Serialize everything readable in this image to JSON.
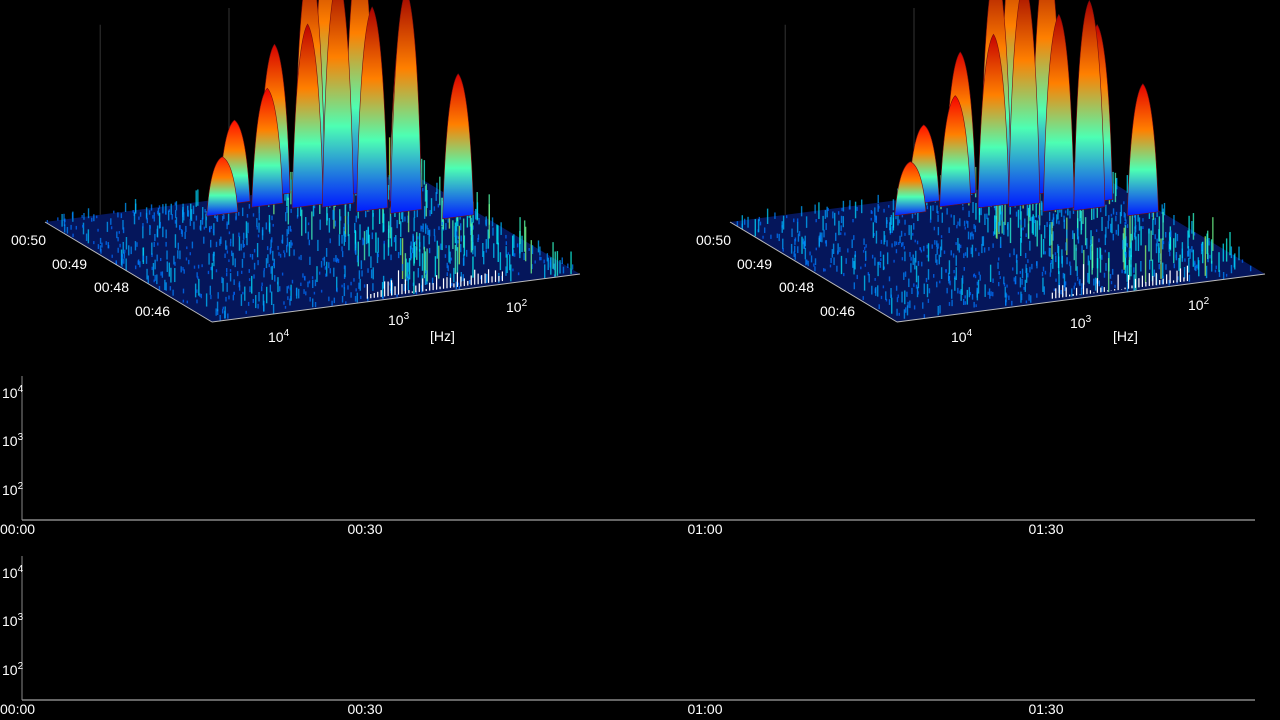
{
  "chart_data": [
    {
      "type": "surface",
      "time_ticks": [
        "00:50",
        "00:49",
        "00:48",
        "00:46"
      ],
      "freq_ticks": [
        {
          "base": "10",
          "exp": "4"
        },
        {
          "base": "10",
          "exp": "3"
        },
        {
          "base": "10",
          "exp": "2"
        }
      ],
      "freq_unit": "[Hz]",
      "colormap": "jet",
      "peaks": [
        {
          "f": 200,
          "t": 48.4,
          "h": 0.55
        },
        {
          "f": 260,
          "t": 49.2,
          "h": 0.72
        },
        {
          "f": 320,
          "t": 48.8,
          "h": 0.85
        },
        {
          "f": 380,
          "t": 49.6,
          "h": 0.95
        },
        {
          "f": 450,
          "t": 49.0,
          "h": 0.78
        },
        {
          "f": 520,
          "t": 49.8,
          "h": 1.0
        },
        {
          "f": 600,
          "t": 49.3,
          "h": 0.88
        },
        {
          "f": 700,
          "t": 49.7,
          "h": 0.9
        },
        {
          "f": 850,
          "t": 49.4,
          "h": 0.7
        },
        {
          "f": 1000,
          "t": 49.9,
          "h": 0.58
        },
        {
          "f": 1300,
          "t": 49.6,
          "h": 0.45
        },
        {
          "f": 1800,
          "t": 49.8,
          "h": 0.32
        },
        {
          "f": 2500,
          "t": 49.5,
          "h": 0.22
        }
      ]
    },
    {
      "type": "surface",
      "time_ticks": [
        "00:50",
        "00:49",
        "00:48",
        "00:46"
      ],
      "freq_ticks": [
        {
          "base": "10",
          "exp": "4"
        },
        {
          "base": "10",
          "exp": "3"
        },
        {
          "base": "10",
          "exp": "2"
        }
      ],
      "freq_unit": "[Hz]",
      "colormap": "jet",
      "peaks": [
        {
          "f": 190,
          "t": 48.5,
          "h": 0.5
        },
        {
          "f": 250,
          "t": 49.1,
          "h": 0.68
        },
        {
          "f": 310,
          "t": 48.9,
          "h": 0.8
        },
        {
          "f": 370,
          "t": 49.6,
          "h": 0.92
        },
        {
          "f": 440,
          "t": 49.0,
          "h": 0.75
        },
        {
          "f": 510,
          "t": 49.8,
          "h": 0.98
        },
        {
          "f": 590,
          "t": 49.3,
          "h": 0.86
        },
        {
          "f": 690,
          "t": 49.7,
          "h": 0.88
        },
        {
          "f": 840,
          "t": 49.4,
          "h": 0.66
        },
        {
          "f": 990,
          "t": 49.9,
          "h": 0.55
        },
        {
          "f": 1250,
          "t": 49.6,
          "h": 0.42
        },
        {
          "f": 1700,
          "t": 49.8,
          "h": 0.3
        },
        {
          "f": 2400,
          "t": 49.5,
          "h": 0.2
        }
      ]
    },
    {
      "type": "heatmap",
      "x_ticks": [
        "00:00",
        "00:30",
        "01:00",
        "01:30"
      ],
      "x_tick_seconds": [
        0,
        30,
        60,
        90
      ],
      "y_ticks": [
        {
          "base": "10",
          "exp": "4"
        },
        {
          "base": "10",
          "exp": "3"
        },
        {
          "base": "10",
          "exp": "2"
        }
      ],
      "y_tick_values": [
        10000,
        1000,
        100
      ],
      "y_scale": "log",
      "grayscale_range_seconds": [
        0,
        47
      ],
      "color_range_seconds": [
        47,
        107
      ],
      "colormap": "jet"
    },
    {
      "type": "heatmap",
      "x_ticks": [
        "00:00",
        "00:30",
        "01:00",
        "01:30"
      ],
      "x_tick_seconds": [
        0,
        30,
        60,
        90
      ],
      "y_ticks": [
        {
          "base": "10",
          "exp": "4"
        },
        {
          "base": "10",
          "exp": "3"
        },
        {
          "base": "10",
          "exp": "2"
        }
      ],
      "y_tick_values": [
        10000,
        1000,
        100
      ],
      "y_scale": "log",
      "grayscale_range_seconds": [
        0,
        47
      ],
      "color_range_seconds": [
        47,
        107
      ],
      "colormap": "jet"
    }
  ]
}
